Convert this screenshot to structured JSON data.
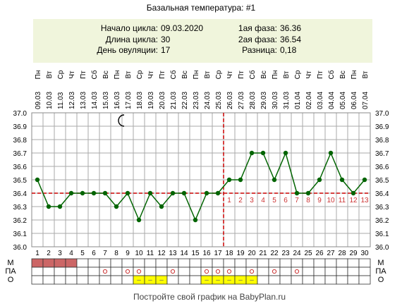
{
  "title": "Базальная температура: #1",
  "summary": {
    "cycle_start_label": "Начало цикла:",
    "cycle_start_value": "09.03.2020",
    "cycle_length_label": "Длина цикла:",
    "cycle_length_value": "30",
    "ovulation_day_label": "День овуляции:",
    "ovulation_day_value": "17",
    "phase1_label": "1ая фаза:",
    "phase1_value": "36.36",
    "phase2_label": "2ая фаза:",
    "phase2_value": "36.54",
    "difference_label": "Разница:",
    "difference_value": "0,18"
  },
  "footer": "Постройте свой график на BabyPlan.ru",
  "row_labels": [
    "М",
    "ПА",
    "О"
  ],
  "colors": {
    "line": "#006400",
    "point": "#006400",
    "grid": "#aaaaaa",
    "coverline": "#cc0000",
    "menses": "#cc6666",
    "summary_bg": "#f0f5dc",
    "post_ov_numbers": "#cc3333",
    "o_marker": "#ffff00"
  },
  "moon_icon": "crescent-moon-icon",
  "chart_data": {
    "type": "line",
    "days": [
      1,
      2,
      3,
      4,
      5,
      6,
      7,
      8,
      9,
      10,
      11,
      12,
      13,
      14,
      15,
      16,
      17,
      18,
      19,
      20,
      21,
      22,
      23,
      24,
      25,
      26,
      27,
      28,
      29,
      30
    ],
    "weekdays": [
      "Пн",
      "Вт",
      "Ср",
      "Чт",
      "Пт",
      "Сб",
      "Вс",
      "Пн",
      "Вт",
      "Ср",
      "Чт",
      "Пт",
      "Сб",
      "Вс",
      "Пн",
      "Вт",
      "Ср",
      "Чт",
      "Пт",
      "Сб",
      "Вс",
      "Пн",
      "Вт",
      "Ср",
      "Чт",
      "Пт",
      "Сб",
      "Вс",
      "Пн",
      "Вт"
    ],
    "dates": [
      "09.03",
      "10.03",
      "11.03",
      "12.03",
      "13.03",
      "14.03",
      "15.03",
      "16.03",
      "17.03",
      "18.03",
      "19.03",
      "20.03",
      "21.03",
      "22.03",
      "23.03",
      "24.03",
      "25.03",
      "26.03",
      "27.03",
      "28.03",
      "29.03",
      "30.03",
      "31.03",
      "01.04",
      "02.04",
      "03.04",
      "04.04",
      "05.04",
      "06.04",
      "07.04"
    ],
    "temperatures": [
      36.5,
      36.3,
      36.3,
      36.4,
      36.4,
      36.4,
      36.4,
      36.3,
      36.4,
      36.2,
      36.4,
      36.3,
      36.4,
      36.4,
      36.2,
      36.4,
      36.4,
      36.5,
      36.5,
      36.7,
      36.7,
      36.5,
      36.7,
      36.4,
      36.4,
      36.5,
      36.7,
      36.5,
      36.4,
      36.5
    ],
    "ylim": [
      36.0,
      37.0
    ],
    "yticks": [
      "37.0",
      "36.9",
      "36.8",
      "36.7",
      "36.6",
      "36.5",
      "36.4",
      "36.3",
      "36.2",
      "36.1",
      "36.0"
    ],
    "coverline": 36.4,
    "ovulation_day": 17,
    "post_ovulation_numbers": [
      "1",
      "2",
      "3",
      "4",
      "5",
      "6",
      "7",
      "8",
      "9",
      "10",
      "11",
      "12",
      "13"
    ],
    "moon_day": 8,
    "menses_days": [
      1,
      2,
      3,
      4
    ],
    "pa_days": [
      7,
      9,
      10,
      13,
      16,
      17,
      18,
      20,
      22,
      24
    ],
    "o_days": [
      10,
      11,
      12,
      16,
      17,
      18,
      19,
      20
    ],
    "o_glyph": "–",
    "pa_glyph": "о"
  }
}
